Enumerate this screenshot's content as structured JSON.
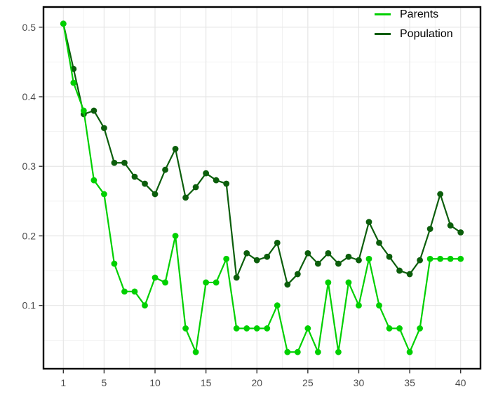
{
  "figure": {
    "title": "",
    "background_color": "#ffffff",
    "panel_border_color": "#000000",
    "grid_major_color": "#e6e6e6",
    "grid_minor_color": "#f2f2f2",
    "axis_text_color": "#4d4d4d",
    "tick_mark_color": "#333333"
  },
  "legend": {
    "position": "top-right",
    "items": [
      {
        "label": "Parents",
        "color": "#00d000"
      },
      {
        "label": "Population",
        "color": "#0b5e0b"
      }
    ]
  },
  "chart_data": {
    "type": "line",
    "title": "",
    "xlabel": "",
    "ylabel": "",
    "grid": "major+minor",
    "legend_position": "top-right",
    "xlim": [
      -0.95,
      41.95
    ],
    "ylim": [
      0.009,
      0.529
    ],
    "x_ticks": [
      1,
      5,
      10,
      15,
      20,
      25,
      30,
      35,
      40
    ],
    "x_minor_ticks": [
      3,
      7.5,
      12.5,
      17.5,
      22.5,
      27.5,
      32.5,
      37.5
    ],
    "y_ticks": [
      0.1,
      0.2,
      0.3,
      0.4,
      0.5
    ],
    "y_tick_labels": [
      "0.1",
      "0.2",
      "0.3",
      "0.4",
      "0.5"
    ],
    "y_minor_ticks": [
      0.05,
      0.15,
      0.25,
      0.35,
      0.45
    ],
    "x": [
      1,
      2,
      3,
      4,
      5,
      6,
      7,
      8,
      9,
      10,
      11,
      12,
      13,
      14,
      15,
      16,
      17,
      18,
      19,
      20,
      21,
      22,
      23,
      24,
      25,
      26,
      27,
      28,
      29,
      30,
      31,
      32,
      33,
      34,
      35,
      36,
      37,
      38,
      39,
      40
    ],
    "series": [
      {
        "name": "Population",
        "color": "#0b5e0b",
        "marker": "circle",
        "values": [
          0.505,
          0.44,
          0.375,
          0.38,
          0.355,
          0.305,
          0.305,
          0.285,
          0.275,
          0.26,
          0.295,
          0.325,
          0.255,
          0.27,
          0.29,
          0.28,
          0.275,
          0.14,
          0.175,
          0.165,
          0.17,
          0.19,
          0.13,
          0.145,
          0.175,
          0.16,
          0.175,
          0.16,
          0.17,
          0.165,
          0.22,
          0.19,
          0.17,
          0.15,
          0.145,
          0.165,
          0.21,
          0.26,
          0.215,
          0.205
        ]
      },
      {
        "name": "Parents",
        "color": "#00d000",
        "marker": "circle",
        "values": [
          0.505,
          0.42,
          0.38,
          0.28,
          0.26,
          0.16,
          0.12,
          0.12,
          0.1,
          0.14,
          0.133,
          0.2,
          0.067,
          0.033,
          0.133,
          0.133,
          0.167,
          0.067,
          0.067,
          0.067,
          0.067,
          0.1,
          0.033,
          0.033,
          0.067,
          0.033,
          0.133,
          0.033,
          0.133,
          0.1,
          0.167,
          0.1,
          0.067,
          0.067,
          0.033,
          0.067,
          0.167,
          0.167,
          0.167,
          0.167
        ]
      }
    ]
  }
}
